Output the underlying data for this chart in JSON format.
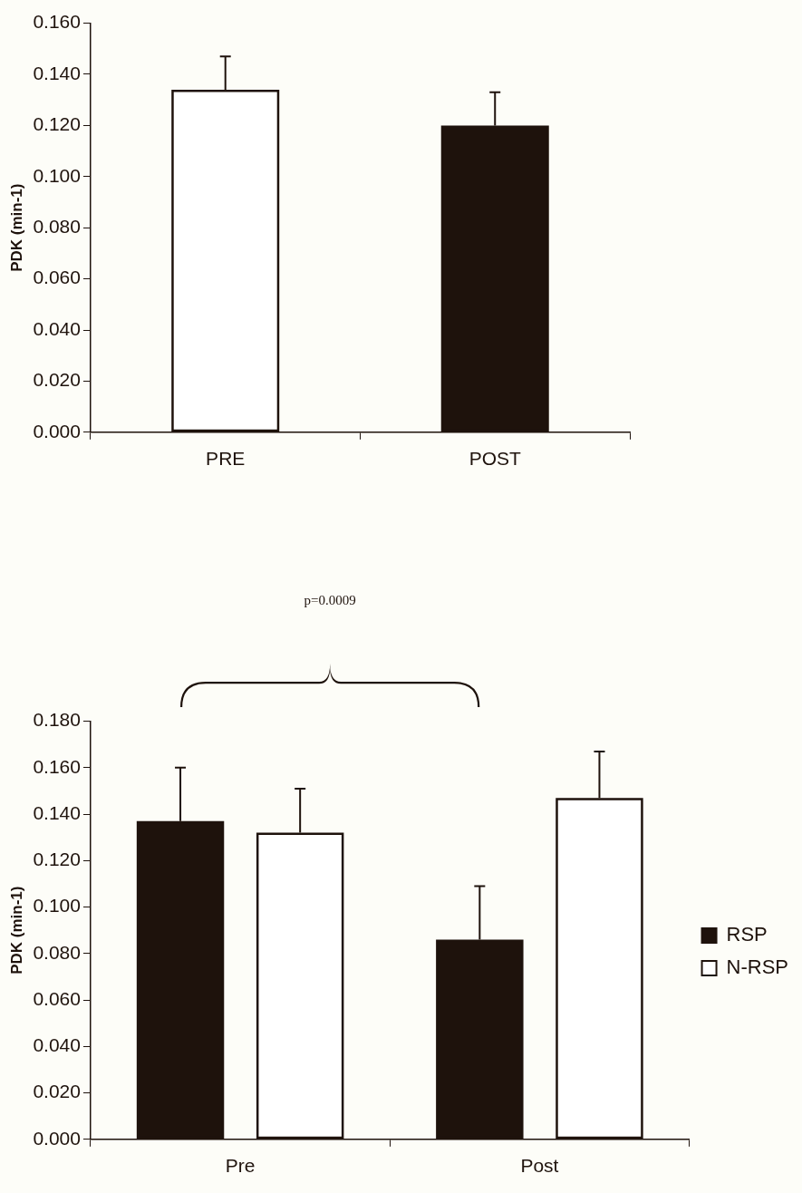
{
  "chart_data": [
    {
      "type": "bar",
      "ylabel": "PDK (min-1)",
      "categories": [
        "PRE",
        "POST"
      ],
      "values": [
        0.134,
        0.12
      ],
      "colors": [
        "#ffffff",
        "#1e120c"
      ],
      "errors": [
        [
          0.134,
          0.147
        ],
        [
          0.12,
          0.133
        ]
      ],
      "ylim": [
        0,
        0.16
      ],
      "yticks": [
        {
          "value": 0,
          "label": "0.000"
        },
        {
          "value": 0.02,
          "label": "0.020"
        },
        {
          "value": 0.04,
          "label": "0.040"
        },
        {
          "value": 0.06,
          "label": "0.060"
        },
        {
          "value": 0.08,
          "label": "0.080"
        },
        {
          "value": 0.1,
          "label": "0.100"
        },
        {
          "value": 0.12,
          "label": "0.120"
        },
        {
          "value": 0.14,
          "label": "0.140"
        },
        {
          "value": 0.16,
          "label": "0.160"
        }
      ],
      "grid": false,
      "legend": false
    },
    {
      "type": "bar",
      "ylabel": "PDK (min-1)",
      "categories": [
        "Pre",
        "Post"
      ],
      "series": [
        {
          "name": "RSP",
          "color": "#1e120c",
          "values": [
            0.137,
            0.086
          ],
          "errors": [
            [
              0.137,
              0.16
            ],
            [
              0.086,
              0.109
            ]
          ]
        },
        {
          "name": "N-RSP",
          "color": "#ffffff",
          "values": [
            0.132,
            0.147
          ],
          "errors": [
            [
              0.132,
              0.151
            ],
            [
              0.147,
              0.167
            ]
          ]
        }
      ],
      "ylim": [
        0,
        0.18
      ],
      "yticks": [
        {
          "value": 0,
          "label": "0.000"
        },
        {
          "value": 0.02,
          "label": "0.020"
        },
        {
          "value": 0.04,
          "label": "0.040"
        },
        {
          "value": 0.06,
          "label": "0.060"
        },
        {
          "value": 0.08,
          "label": "0.080"
        },
        {
          "value": 0.1,
          "label": "0.100"
        },
        {
          "value": 0.12,
          "label": "0.120"
        },
        {
          "value": 0.14,
          "label": "0.140"
        },
        {
          "value": 0.16,
          "label": "0.160"
        },
        {
          "value": 0.18,
          "label": "0.180"
        }
      ],
      "grid": false,
      "legend": "right",
      "annotations": [
        "p=0.0009"
      ]
    }
  ]
}
